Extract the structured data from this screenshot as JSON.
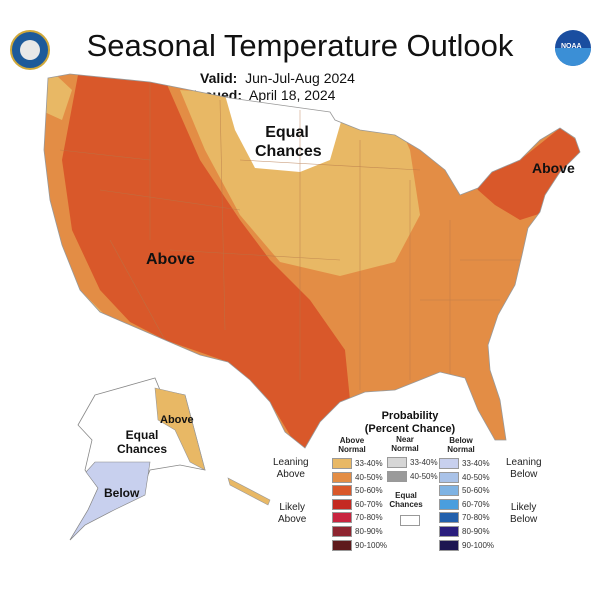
{
  "header": {
    "title": "Seasonal Temperature Outlook",
    "valid_label": "Valid:",
    "valid_value": "Jun-Jul-Aug 2024",
    "issued_label": "Issued:",
    "issued_value": "April 18, 2024"
  },
  "logos": {
    "left": "Department of Commerce seal",
    "right": "NOAA"
  },
  "map_labels": {
    "west_above": "Above",
    "north_equal_1": "Equal",
    "north_equal_2": "Chances",
    "northeast_above": "Above",
    "ak_above": "Above",
    "ak_equal_1": "Equal",
    "ak_equal_2": "Chances",
    "ak_below": "Below"
  },
  "colors": {
    "above_33_40": "#e8b865",
    "above_40_50": "#e38d45",
    "above_50_60": "#d9582a",
    "equal": "#ffffff",
    "below_33_40": "#c8d0ee"
  },
  "legend": {
    "title": "Probability",
    "subtitle": "(Percent Chance)",
    "col_above": [
      "Above",
      "Normal"
    ],
    "col_near": [
      "Near",
      "Normal"
    ],
    "col_below": [
      "Below",
      "Normal"
    ],
    "leaning_above": [
      "Leaning",
      "Above"
    ],
    "likely_above": [
      "Likely",
      "Above"
    ],
    "leaning_below": [
      "Leaning",
      "Below"
    ],
    "likely_below": [
      "Likely",
      "Below"
    ],
    "equal": [
      "Equal",
      "Chances"
    ],
    "above": [
      {
        "range": "33-40%",
        "color": "#e8b865"
      },
      {
        "range": "40-50%",
        "color": "#e38d45"
      },
      {
        "range": "50-60%",
        "color": "#d9582a"
      },
      {
        "range": "60-70%",
        "color": "#c42a22"
      },
      {
        "range": "70-80%",
        "color": "#c8243f"
      },
      {
        "range": "80-90%",
        "color": "#8e2530"
      },
      {
        "range": "90-100%",
        "color": "#5e1a1c"
      }
    ],
    "near": [
      {
        "range": "33-40%",
        "color": "#d6d6d6"
      },
      {
        "range": "40-50%",
        "color": "#9a9a9a"
      }
    ],
    "below": [
      {
        "range": "33-40%",
        "color": "#c8d0ee"
      },
      {
        "range": "40-50%",
        "color": "#a9c2e8"
      },
      {
        "range": "50-60%",
        "color": "#7fb3e3"
      },
      {
        "range": "60-70%",
        "color": "#4a9ede"
      },
      {
        "range": "70-80%",
        "color": "#2260ac"
      },
      {
        "range": "80-90%",
        "color": "#2a1e7e"
      },
      {
        "range": "90-100%",
        "color": "#1d1651"
      }
    ]
  }
}
